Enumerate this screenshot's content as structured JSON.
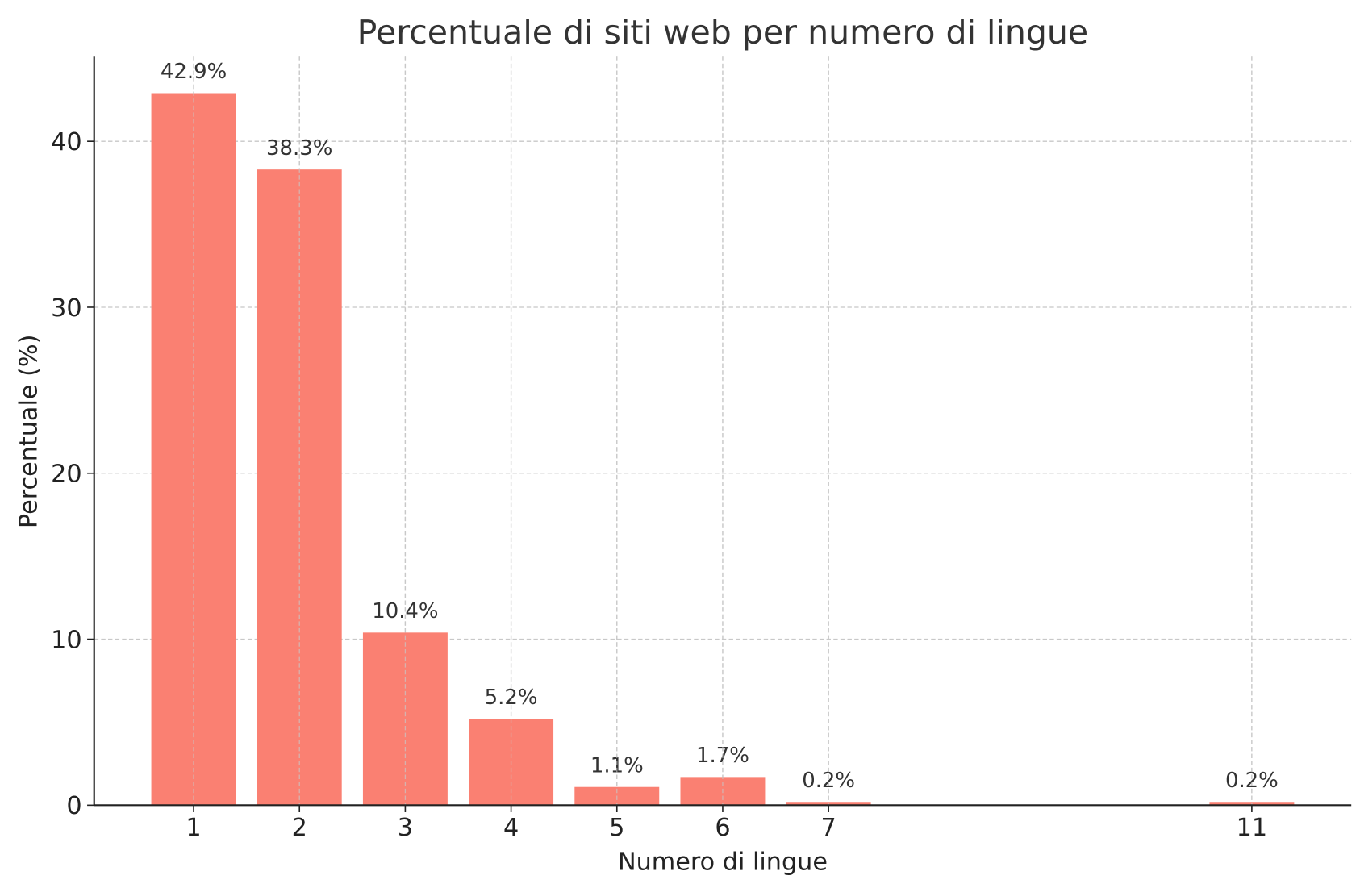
{
  "chart_data": {
    "type": "bar",
    "title": "Percentuale di siti web per numero di lingue",
    "xlabel": "Numero di lingue",
    "ylabel": "Percentuale (%)",
    "x": [
      1,
      2,
      3,
      4,
      5,
      6,
      7,
      11
    ],
    "values": [
      42.9,
      38.3,
      10.4,
      5.2,
      1.1,
      1.7,
      0.2,
      0.2
    ],
    "data_labels": [
      "42.9%",
      "38.3%",
      "10.4%",
      "5.2%",
      "1.1%",
      "1.7%",
      "0.2%",
      "0.2%"
    ],
    "xticks": [
      "1",
      "2",
      "3",
      "4",
      "5",
      "6",
      "7",
      "11"
    ],
    "yticks": [
      0,
      10,
      20,
      30,
      40
    ],
    "ylim": [
      0,
      45.1
    ],
    "xlim": [
      0.06,
      11.94
    ],
    "grid": true,
    "bar_color": "#fa8072"
  }
}
